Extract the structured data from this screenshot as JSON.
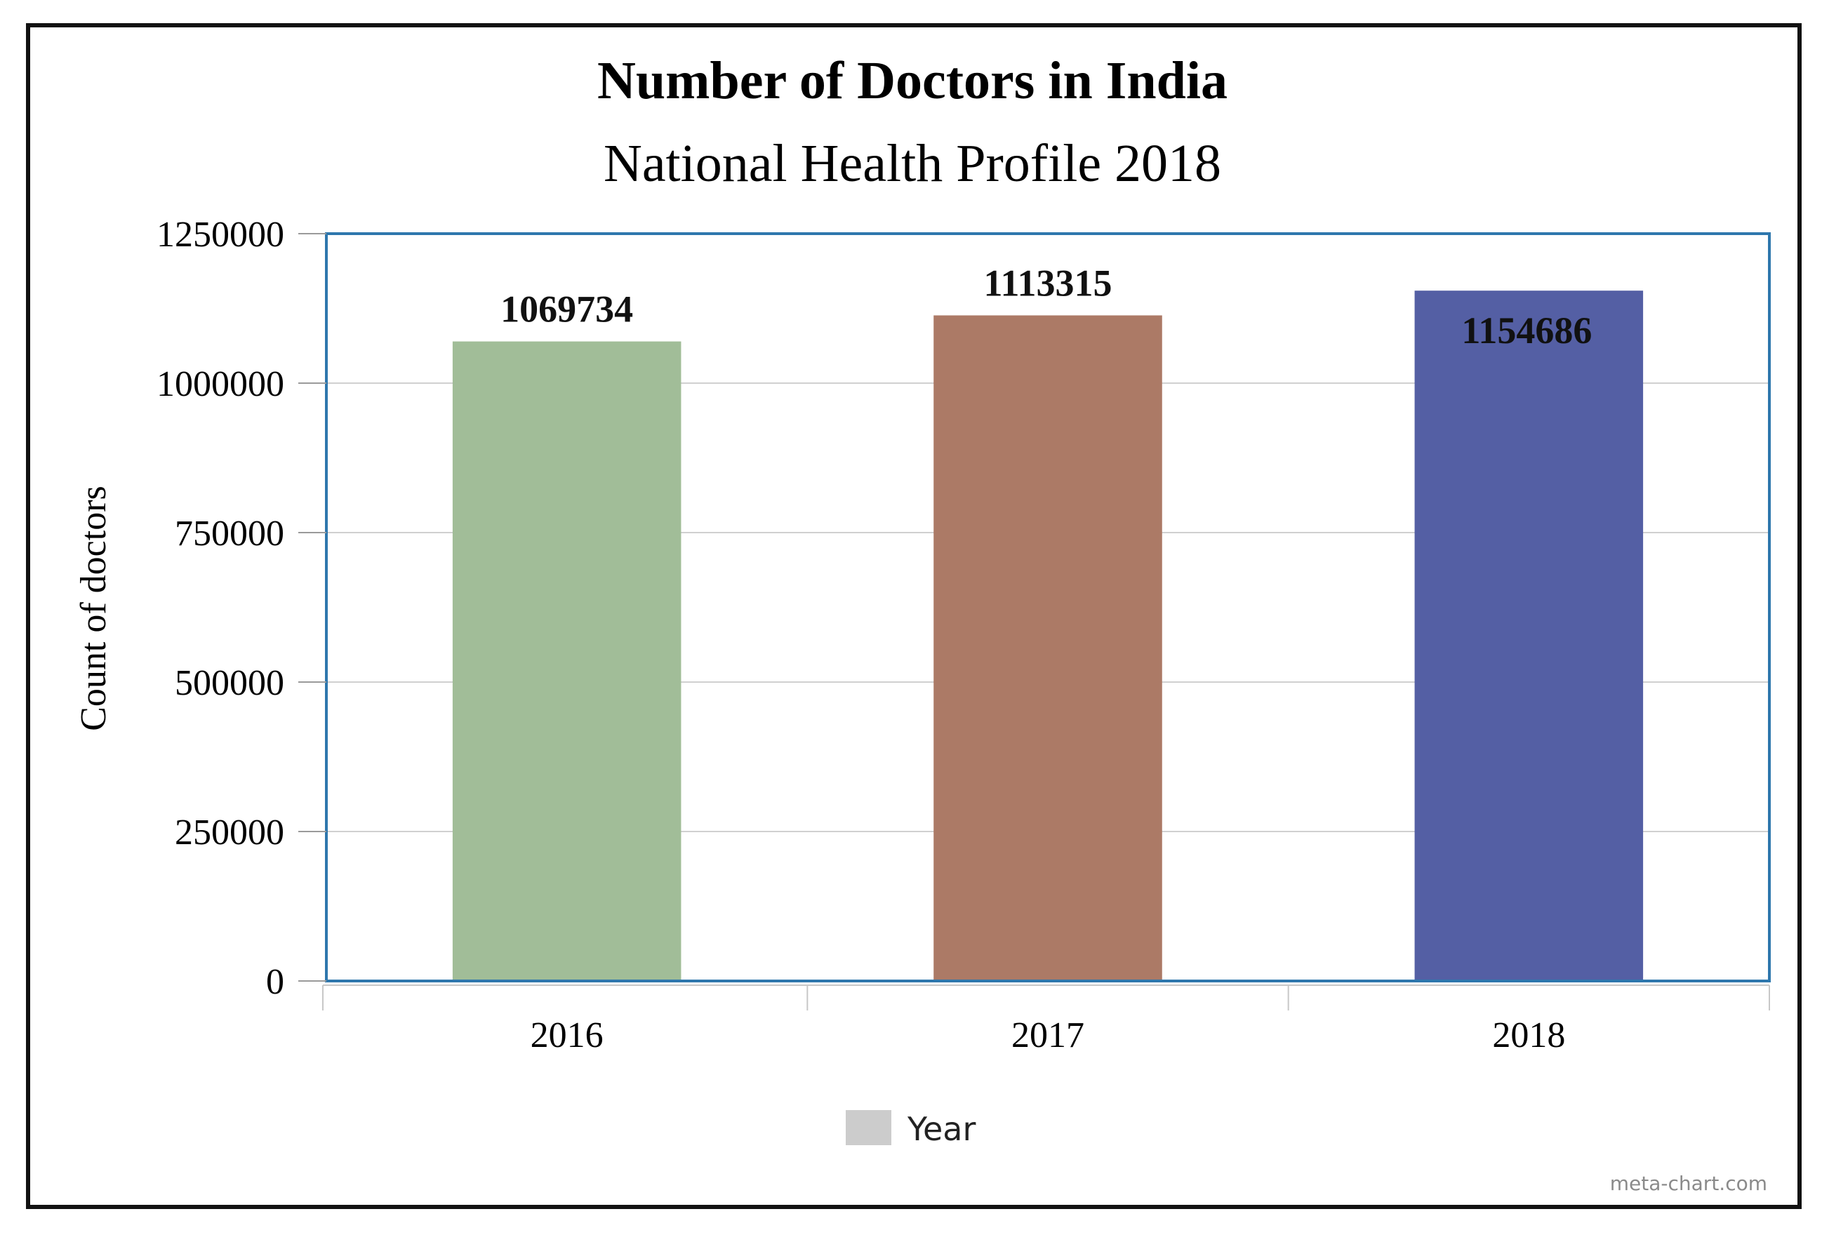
{
  "chart_data": {
    "type": "bar",
    "title": "Number of Doctors in India",
    "subtitle": "National Health Profile 2018",
    "xlabel": "",
    "ylabel": "Count of doctors",
    "categories": [
      "2016",
      "2017",
      "2018"
    ],
    "values": [
      1069734,
      1113315,
      1154686
    ],
    "value_labels": [
      "1069734",
      "1113315",
      "1154686"
    ],
    "bar_colors": [
      "#a1bd98",
      "#ac7a66",
      "#545fa4"
    ],
    "ylim": [
      0,
      1250000
    ],
    "yticks": [
      0,
      250000,
      500000,
      750000,
      1000000,
      1250000
    ],
    "ytick_labels": [
      "0",
      "250000",
      "500000",
      "750000",
      "1000000",
      "1250000"
    ],
    "grid": true,
    "legend": {
      "position": "bottom-center",
      "entries": [
        {
          "label": "Year",
          "color": "#cccccc"
        }
      ]
    },
    "credit": "meta-chart.com",
    "plot_border_color": "#2e77ad"
  }
}
